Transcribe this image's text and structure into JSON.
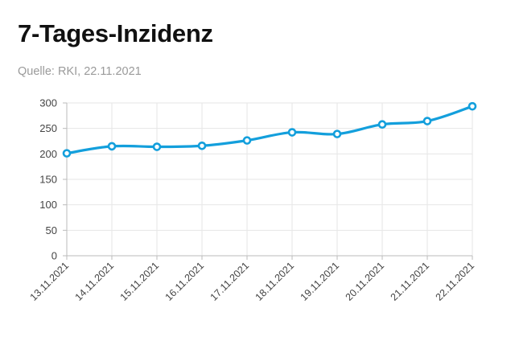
{
  "header": {
    "title": "7-Tages-Inzidenz",
    "source": "Quelle: RKI, 22.11.2021"
  },
  "chart_data": {
    "type": "line",
    "title": "7-Tages-Inzidenz",
    "subtitle": "Quelle: RKI, 22.11.2021",
    "xlabel": "",
    "ylabel": "",
    "categories": [
      "13.11.2021",
      "14.11.2021",
      "15.11.2021",
      "16.11.2021",
      "17.11.2021",
      "18.11.2021",
      "19.11.2021",
      "20.11.2021",
      "21.11.2021",
      "22.11.2021"
    ],
    "series": [
      {
        "values": [
          201.1,
          214.9,
          213.9,
          215.9,
          226.4,
          242.3,
          239.0,
          257.8,
          264.4,
          293.4
        ],
        "color": "#139fdc"
      }
    ],
    "yticks": [
      0,
      50,
      100,
      150,
      200,
      250,
      300
    ],
    "ylim": [
      0,
      300
    ],
    "grid": true,
    "legend": "none"
  }
}
